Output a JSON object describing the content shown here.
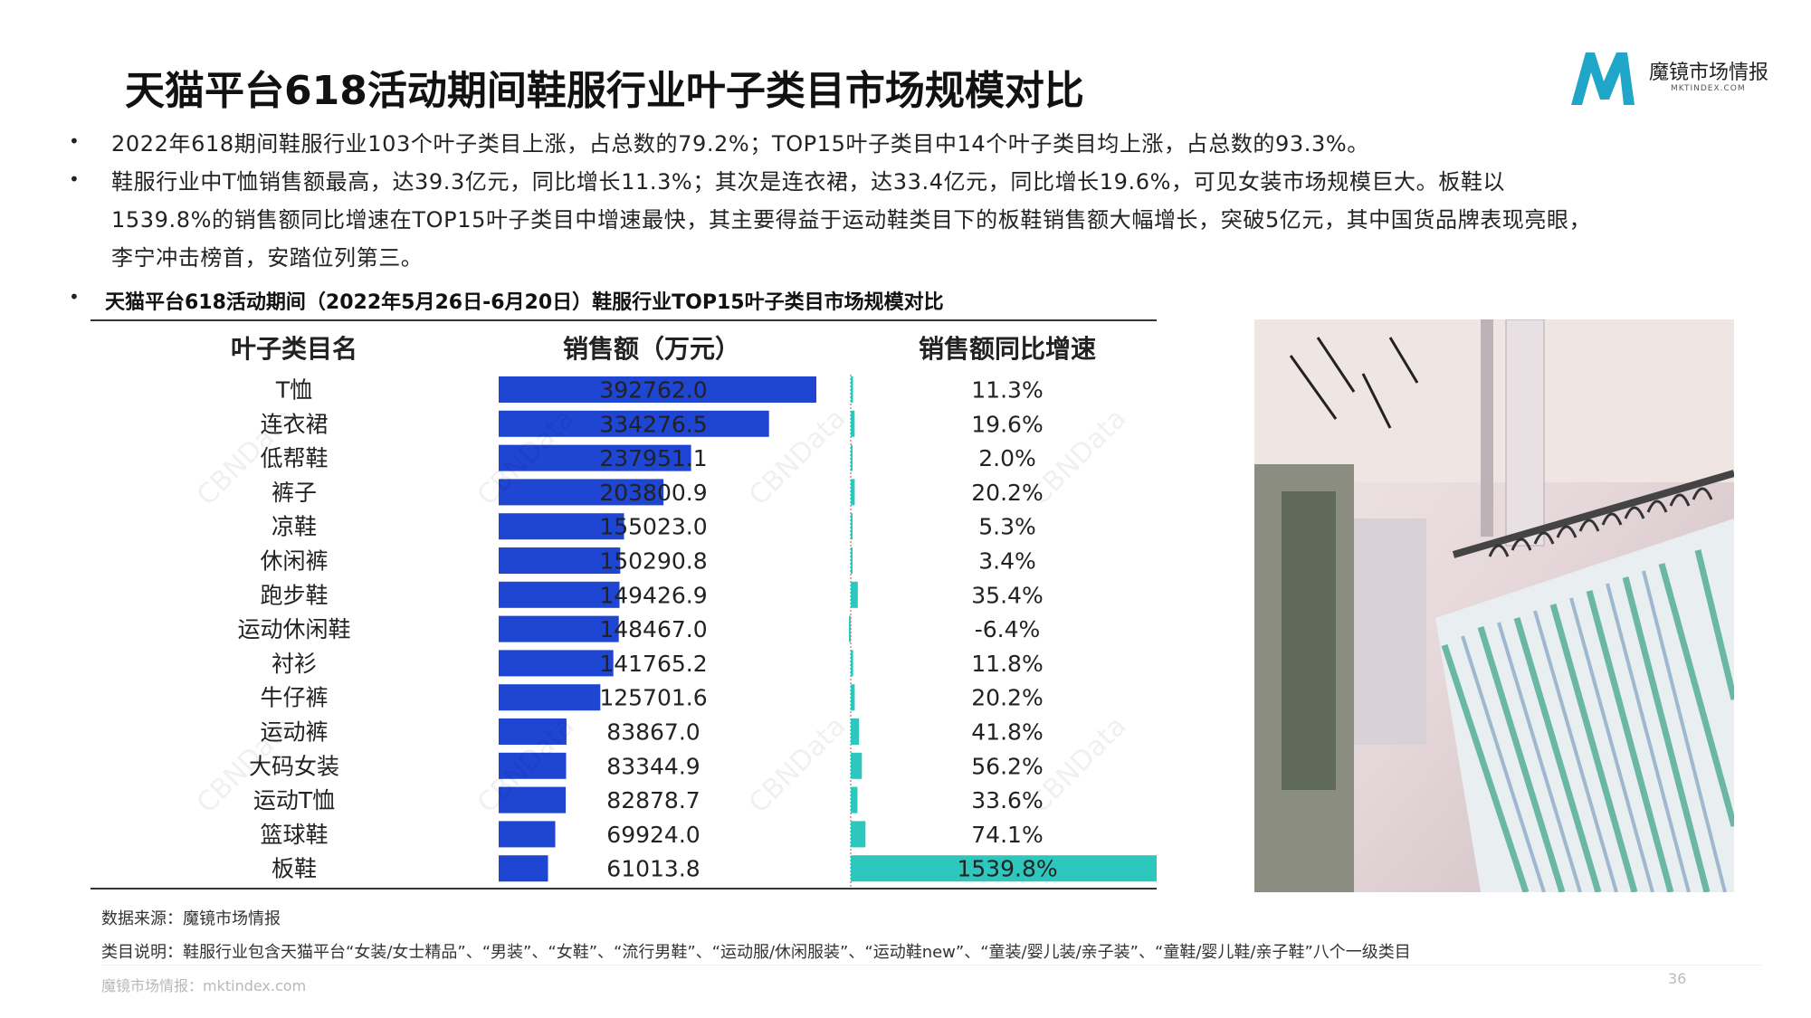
{
  "page": {
    "title": "天猫平台618活动期间鞋服行业叶子类目市场规模对比",
    "logo": {
      "name_cn": "魔镜市场情报",
      "name_en": "MKTINDEX.COM",
      "color": "#1fa6c8"
    },
    "bullets": [
      "2022年618期间鞋服行业103个叶子类目上涨，占总数的79.2%；TOP15叶子类目中14个叶子类目均上涨，占总数的93.3%。",
      "鞋服行业中T恤销售额最高，达39.3亿元，同比增长11.3%；其次是连衣裙，达33.4亿元，同比增长19.6%，可见女装市场规模巨大。板鞋以",
      "1539.8%的销售额同比增速在TOP15叶子类目中增速最快，其主要得益于运动鞋类目下的板鞋销售额大幅增长，突破5亿元，其中国货品牌表现亮眼，",
      "李宁冲击榜首，安踏位列第三。"
    ],
    "bullet_marker": "•",
    "chart_title": "天猫平台618活动期间（2022年5月26日-6月20日）鞋服行业TOP15叶子类目市场规模对比",
    "watermark": "CBNData",
    "notes": {
      "source": "数据来源：魔镜市场情报",
      "explain": "类目说明：鞋服行业包含天猫平台“女装/女士精品”、“男装”、“女鞋”、“流行男鞋”、“运动服/休闲服装”、“运动鞋new”、“童装/婴儿装/亲子装”、“童鞋/婴儿鞋/亲子鞋”八个一级类目"
    },
    "footer": {
      "left": "魔镜市场情报：mktindex.com",
      "page_number": "36"
    }
  },
  "chart_data": {
    "type": "table",
    "columns": [
      "叶子类目名",
      "销售额（万元）",
      "销售额同比增速"
    ],
    "colors": {
      "sales_bar": "#1f45d3",
      "growth_bar": "#2ec7bd"
    },
    "categories": [
      "T恤",
      "连衣裙",
      "低帮鞋",
      "裤子",
      "凉鞋",
      "休闲裤",
      "跑步鞋",
      "运动休闲鞋",
      "衬衫",
      "牛仔裤",
      "运动裤",
      "大码女装",
      "运动T恤",
      "篮球鞋",
      "板鞋"
    ],
    "series": [
      {
        "name": "销售额（万元）",
        "values": [
          392762.0,
          334276.5,
          237951.1,
          203800.9,
          155023.0,
          150290.8,
          149426.9,
          148467.0,
          141765.2,
          125701.6,
          83867.0,
          83344.9,
          82878.7,
          69924.0,
          61013.8
        ],
        "labels": [
          "392762.0",
          "334276.5",
          "237951.1",
          "203800.9",
          "155023.0",
          "150290.8",
          "149426.9",
          "148467.0",
          "141765.2",
          "125701.6",
          "83867.0",
          "83344.9",
          "82878.7",
          "69924.0",
          "61013.8"
        ]
      },
      {
        "name": "销售额同比增速",
        "values": [
          11.3,
          19.6,
          2.0,
          20.2,
          5.3,
          3.4,
          35.4,
          -6.4,
          11.8,
          20.2,
          41.8,
          56.2,
          33.6,
          74.1,
          1539.8
        ],
        "labels": [
          "11.3%",
          "19.6%",
          "2.0%",
          "20.2%",
          "5.3%",
          "3.4%",
          "35.4%",
          "-6.4%",
          "11.8%",
          "20.2%",
          "41.8%",
          "56.2%",
          "33.6%",
          "74.1%",
          "1539.8%"
        ]
      }
    ]
  }
}
